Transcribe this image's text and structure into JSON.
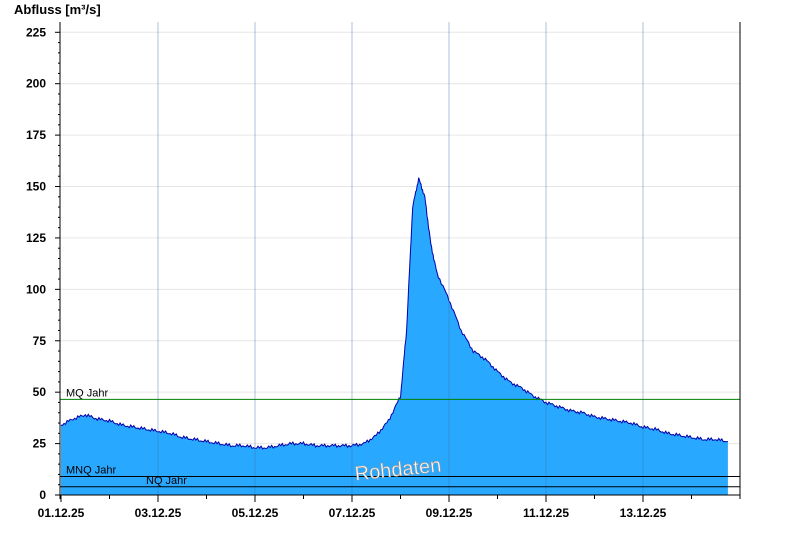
{
  "chart_data": {
    "type": "area",
    "ylabel": "Abfluss [m³/s]",
    "xlabel": "",
    "ylim": [
      0,
      230
    ],
    "yticks": [
      0,
      25,
      50,
      75,
      100,
      125,
      150,
      175,
      200,
      225
    ],
    "xlim_days": [
      "01.12.25",
      "15.12.25"
    ],
    "xticks": [
      "01.12.25",
      "03.12.25",
      "05.12.25",
      "07.12.25",
      "09.12.25",
      "11.12.25",
      "13.12.25"
    ],
    "grid": true,
    "colors": {
      "fill": "#29a8ff",
      "line": "#0000aa",
      "mq": "#008000",
      "ref": "#000000"
    },
    "series": [
      {
        "x": [
          "01.12.25 00:00",
          "01.12.25 06:00",
          "01.12.25 12:00",
          "01.12.25 18:00",
          "02.12.25 00:00",
          "02.12.25 06:00",
          "02.12.25 12:00",
          "02.12.25 18:00",
          "03.12.25 00:00",
          "03.12.25 06:00",
          "03.12.25 12:00",
          "03.12.25 18:00",
          "04.12.25 00:00",
          "04.12.25 06:00",
          "04.12.25 12:00",
          "04.12.25 18:00",
          "05.12.25 00:00",
          "05.12.25 06:00",
          "05.12.25 12:00",
          "05.12.25 18:00",
          "06.12.25 00:00",
          "06.12.25 06:00",
          "06.12.25 12:00",
          "06.12.25 18:00",
          "07.12.25 00:00",
          "07.12.25 06:00",
          "07.12.25 12:00",
          "07.12.25 18:00",
          "08.12.25 00:00",
          "08.12.25 03:00",
          "08.12.25 06:00",
          "08.12.25 09:00",
          "08.12.25 12:00",
          "08.12.25 15:00",
          "08.12.25 18:00",
          "09.12.25 00:00",
          "09.12.25 06:00",
          "09.12.25 12:00",
          "09.12.25 18:00",
          "10.12.25 00:00",
          "10.12.25 06:00",
          "10.12.25 12:00",
          "10.12.25 18:00",
          "11.12.25 00:00",
          "11.12.25 06:00",
          "11.12.25 12:00",
          "11.12.25 18:00",
          "12.12.25 00:00",
          "12.12.25 06:00",
          "12.12.25 12:00",
          "12.12.25 18:00",
          "13.12.25 00:00",
          "13.12.25 06:00",
          "13.12.25 12:00",
          "13.12.25 18:00",
          "14.12.25 00:00",
          "14.12.25 06:00",
          "14.12.25 12:00",
          "14.12.25 18:00"
        ],
        "values": [
          34,
          37,
          39,
          37,
          36,
          34,
          33,
          32,
          31,
          30,
          28,
          27,
          26,
          25,
          24,
          24,
          23,
          23,
          24,
          25,
          25,
          24,
          24,
          24,
          24,
          25,
          29,
          36,
          48,
          80,
          140,
          154,
          145,
          122,
          108,
          95,
          80,
          70,
          66,
          60,
          55,
          52,
          48,
          45,
          43,
          41,
          40,
          38,
          37,
          36,
          35,
          33,
          32,
          30,
          29,
          28,
          27,
          27,
          26
        ]
      }
    ],
    "reference_lines": [
      {
        "label": "MQ Jahr",
        "value": 46.5
      },
      {
        "label": "MNQ Jahr",
        "value": 9
      },
      {
        "label": "NQ Jahr",
        "value": 4
      }
    ],
    "annotations": [
      {
        "text": "Rohdaten"
      }
    ]
  }
}
